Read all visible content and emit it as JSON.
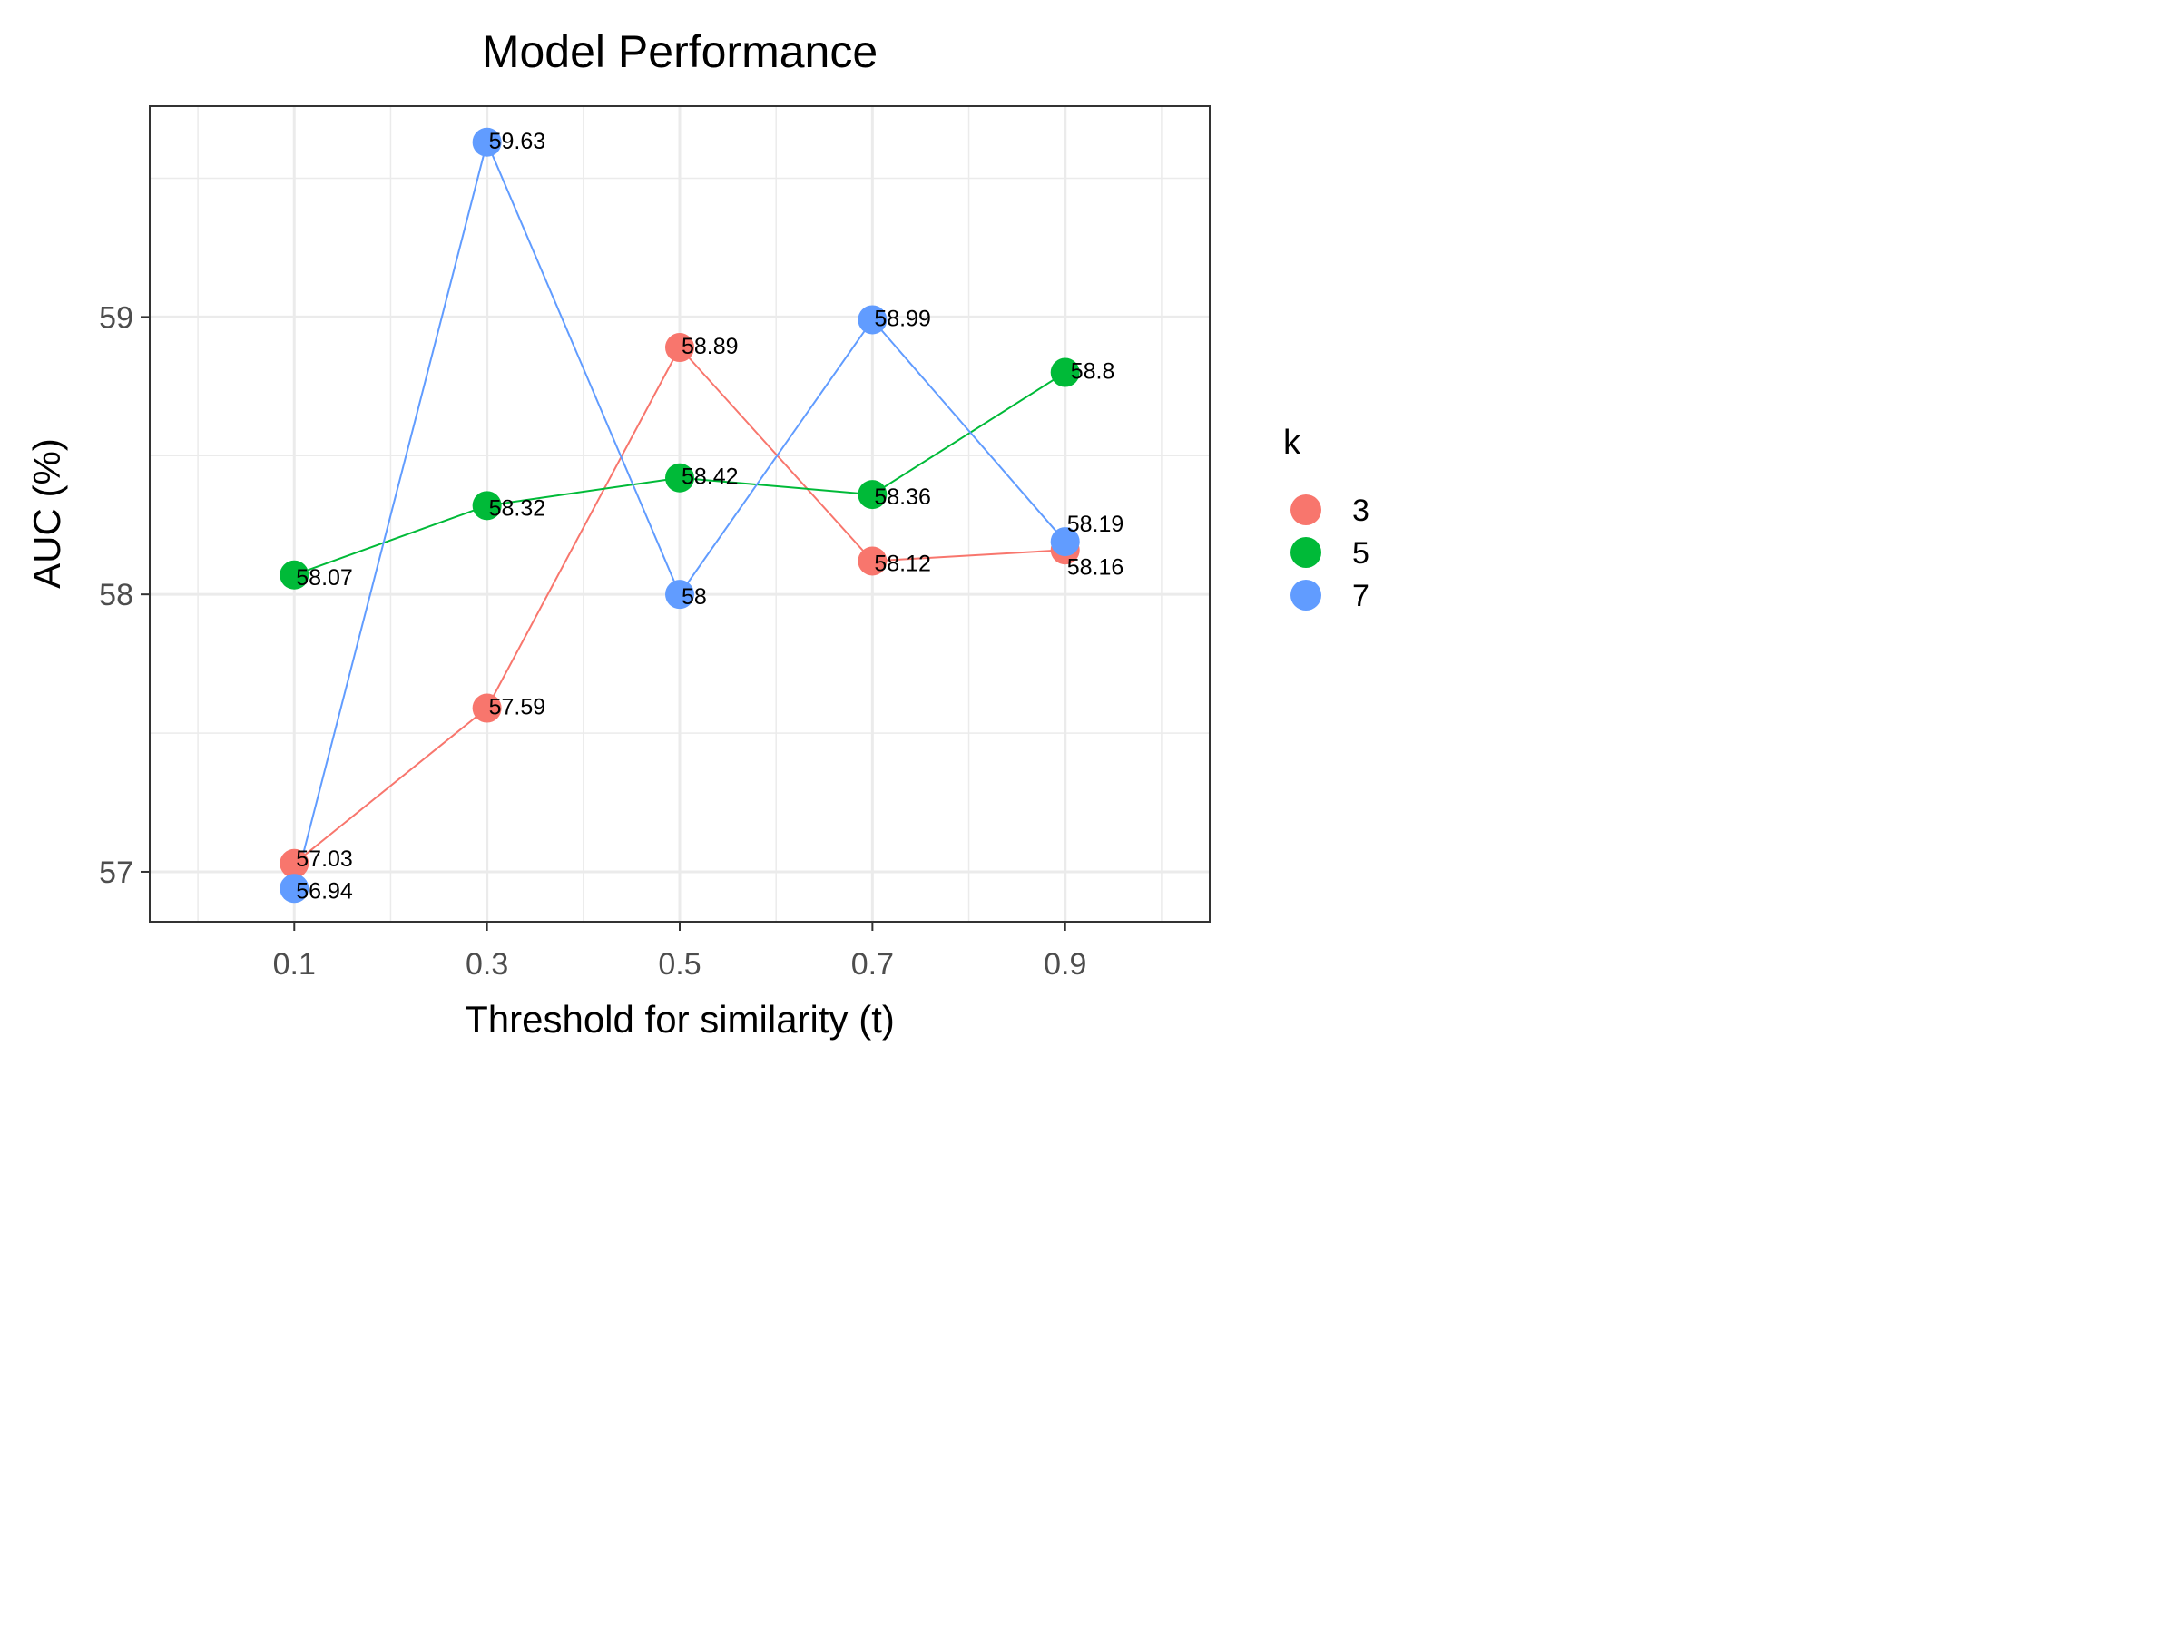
{
  "chart_data": {
    "type": "line",
    "title": "Model Performance",
    "xlabel": "Threshold for similarity (t)",
    "ylabel": "AUC (%)",
    "x": [
      0.1,
      0.3,
      0.5,
      0.7,
      0.9
    ],
    "x_tick_labels": [
      "0.1",
      "0.3",
      "0.5",
      "0.7",
      "0.9"
    ],
    "y_ticks": [
      57,
      58,
      59
    ],
    "y_tick_labels": [
      "57",
      "58",
      "59"
    ],
    "xlim": [
      -0.05,
      1.05
    ],
    "ylim": [
      56.82,
      59.76
    ],
    "grid": true,
    "legend": {
      "title": "k",
      "position": "right"
    },
    "series": [
      {
        "name": "3",
        "color": "#F8766D",
        "values": [
          57.03,
          57.59,
          58.89,
          58.12,
          58.16
        ],
        "labels": [
          "57.03",
          "57.59",
          "58.89",
          "58.12",
          "58.16"
        ]
      },
      {
        "name": "5",
        "color": "#00BA38",
        "values": [
          58.07,
          58.32,
          58.42,
          58.36,
          58.8
        ],
        "labels": [
          "58.07",
          "58.32",
          "58.42",
          "58.36",
          "58.8"
        ]
      },
      {
        "name": "7",
        "color": "#619CFF",
        "values": [
          56.94,
          59.63,
          58.0,
          58.99,
          58.19
        ],
        "labels": [
          "56.94",
          "59.63",
          "58",
          "58.99",
          "58.19"
        ]
      }
    ]
  }
}
